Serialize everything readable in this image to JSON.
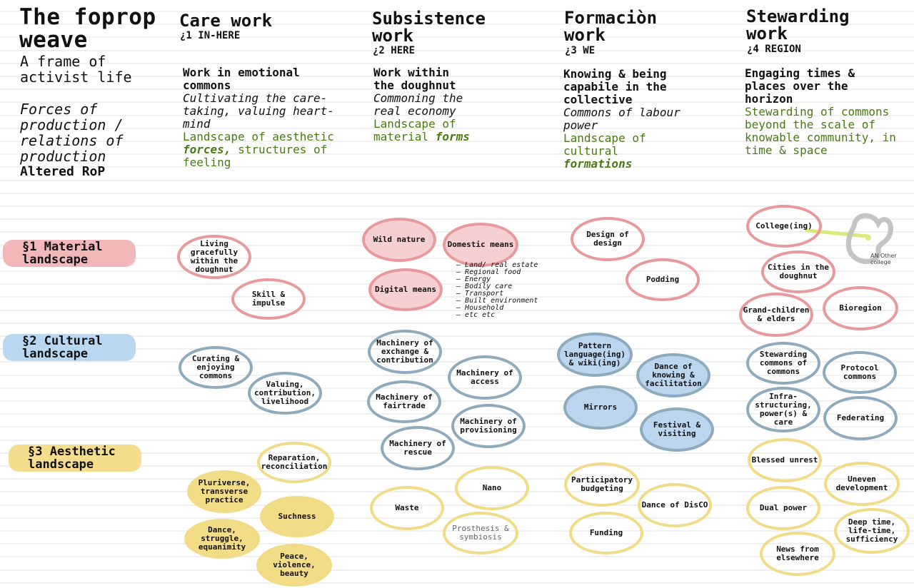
{
  "header": {
    "title": "The foprop weave",
    "subtitle": "A frame of activist life",
    "forces": "Forces of production / relations of production",
    "altered": "Altered RoP"
  },
  "columns": [
    {
      "title": "Care work",
      "code": "¿1 IN-HERE",
      "heading": "Work in emotional commons",
      "italic": "Cultivating the care-taking, valuing heart-mind",
      "green_pre": "Landscape of aesthetic ",
      "green_em": "forces,",
      "green_post": " structures of feeling"
    },
    {
      "title": "Subsistence work",
      "code": "¿2 HERE",
      "heading": "Work within the doughnut",
      "italic": "Commoning the real economy",
      "green_pre": "Landscape of material ",
      "green_em": "forms",
      "green_post": ""
    },
    {
      "title": "Formaciòn work",
      "code": "¿3 WE",
      "heading": "Knowing & being capabile in the collective",
      "italic": "Commons of labour power",
      "green_pre": "Landscape of cultural ",
      "green_em": "formations",
      "green_post": ""
    },
    {
      "title": "Stewarding work",
      "code": "¿4 REGION",
      "heading": "Engaging times & places over the horizon",
      "italic": "",
      "green_pre": "Stewarding of commons beyond the scale of knowable community, in time & space",
      "green_em": "",
      "green_post": ""
    }
  ],
  "rows": [
    {
      "label": "§1 Material landscape",
      "color": "#f2b7b9"
    },
    {
      "label": "§2 Cultural landscape",
      "color": "#b9d7f1"
    },
    {
      "label": "§3 Aesthetic landscape",
      "color": "#f5dd8e"
    }
  ],
  "nodes": {
    "care": {
      "material": [
        "Living gracefully within the doughnut",
        "Skill & impulse"
      ],
      "cultural": [
        "Curating & enjoying commons",
        "Valuing, contribution, livelihood"
      ],
      "aesthetic": [
        "Reparation, reconciliation",
        "Pluriverse, transverse practice",
        "Suchness",
        "Dance, struggle, equanimity",
        "Peace, violence, beauty"
      ]
    },
    "subsistence": {
      "material": [
        "Wild nature",
        "Domestic means",
        "Digital means"
      ],
      "domestic_list": [
        "Land/ real estate",
        "Regional food",
        "Energy",
        "Bodily care",
        "Transport",
        "Built environment",
        "Household",
        "etc etc"
      ],
      "cultural": [
        "Machinery of exchange & contribution",
        "Machinery of access",
        "Machinery of fairtrade",
        "Machinery of provisioning",
        "Machinery of rescue"
      ],
      "aesthetic": [
        "Nano",
        "Waste",
        "Prosthesis & symbiosis"
      ]
    },
    "formacion": {
      "material": [
        "Design of design",
        "Podding"
      ],
      "cultural": [
        "Pattern language(ing) & wiki(ing)",
        "Dance of knowing & facilitation",
        "Mirrors",
        "Festival & visiting"
      ],
      "aesthetic": [
        "Participatory budgeting",
        "Dance of DisCO",
        "Funding"
      ]
    },
    "stewarding": {
      "material": [
        "College(ing)",
        "Cities in the doughnut",
        "Grand-children & elders",
        "Bioregion"
      ],
      "an_label": "AN Other college",
      "cultural": [
        "Stewarding commons of commons",
        "Protocol commons",
        "Infra-structuring, power(s) & care",
        "Federating"
      ],
      "aesthetic": [
        "Blessed unrest",
        "Uneven development",
        "Dual power",
        "Deep time, life-time, sufficiency",
        "News from elsewhere"
      ]
    }
  },
  "colors": {
    "red_ring": "#e8999b",
    "blue_ring": "#8eaabd",
    "yellow_ring": "#f1db86",
    "green_text": "#4a7a12",
    "rule_line": "#e2e2e2"
  }
}
